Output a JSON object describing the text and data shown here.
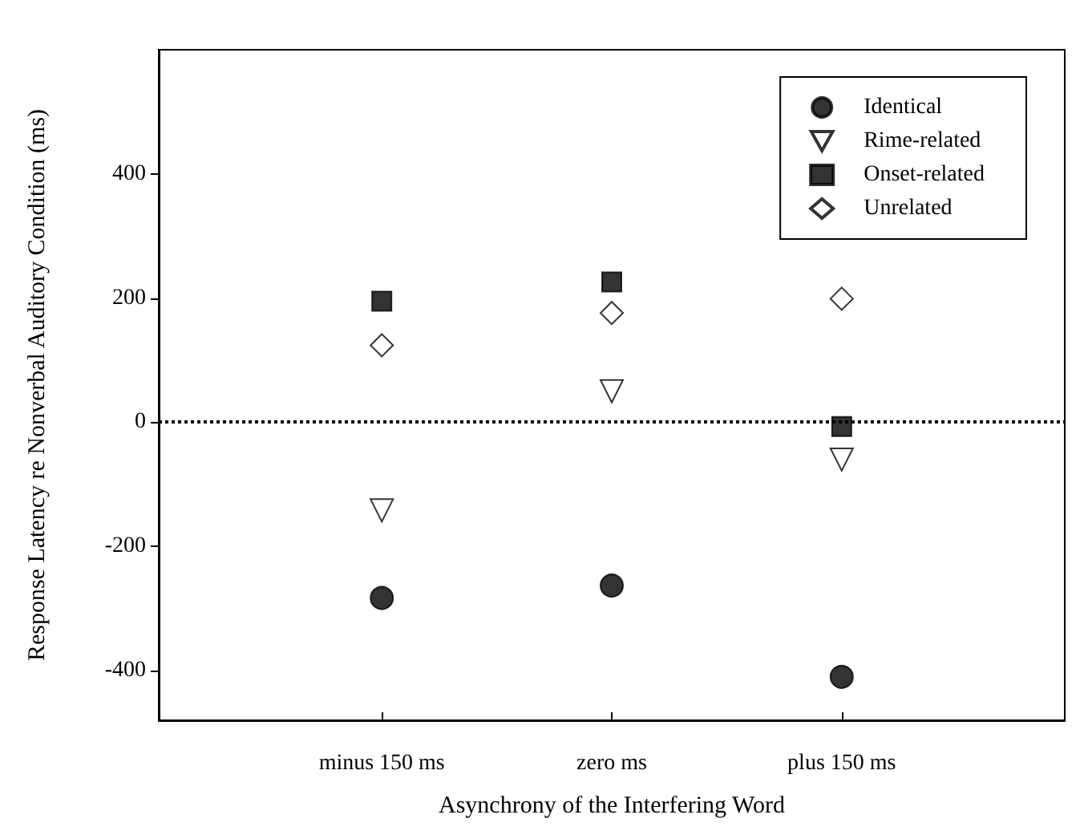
{
  "chart_data": {
    "type": "scatter",
    "xlabel": "Asynchrony of the Interfering Word",
    "ylabel": "Response Latency re Nonverbal Auditory Condition (ms)",
    "categories": [
      "minus 150 ms",
      "zero ms",
      "plus 150 ms"
    ],
    "series": [
      {
        "name": "Identical",
        "color": "#000000",
        "marker": "circle",
        "values": [
          -283,
          -263,
          -410
        ]
      },
      {
        "name": "Rime-related",
        "color": "#000000",
        "marker": "triangle",
        "values": [
          -142,
          50,
          -60
        ]
      },
      {
        "name": "Onset-related",
        "color": "#000000",
        "marker": "square",
        "values": [
          195,
          226,
          -7
        ]
      },
      {
        "name": "Unrelated",
        "color": "#000000",
        "marker": "diamond",
        "values": [
          124,
          176,
          199
        ]
      }
    ],
    "ylim": [
      -480,
      600
    ],
    "yticks": [
      -400,
      -200,
      0,
      200,
      400
    ],
    "grid": false,
    "legend": "top right",
    "ref_lines": [
      {
        "axis": "y",
        "value": 0,
        "color": "#000000",
        "line_style": "dotted"
      }
    ]
  }
}
